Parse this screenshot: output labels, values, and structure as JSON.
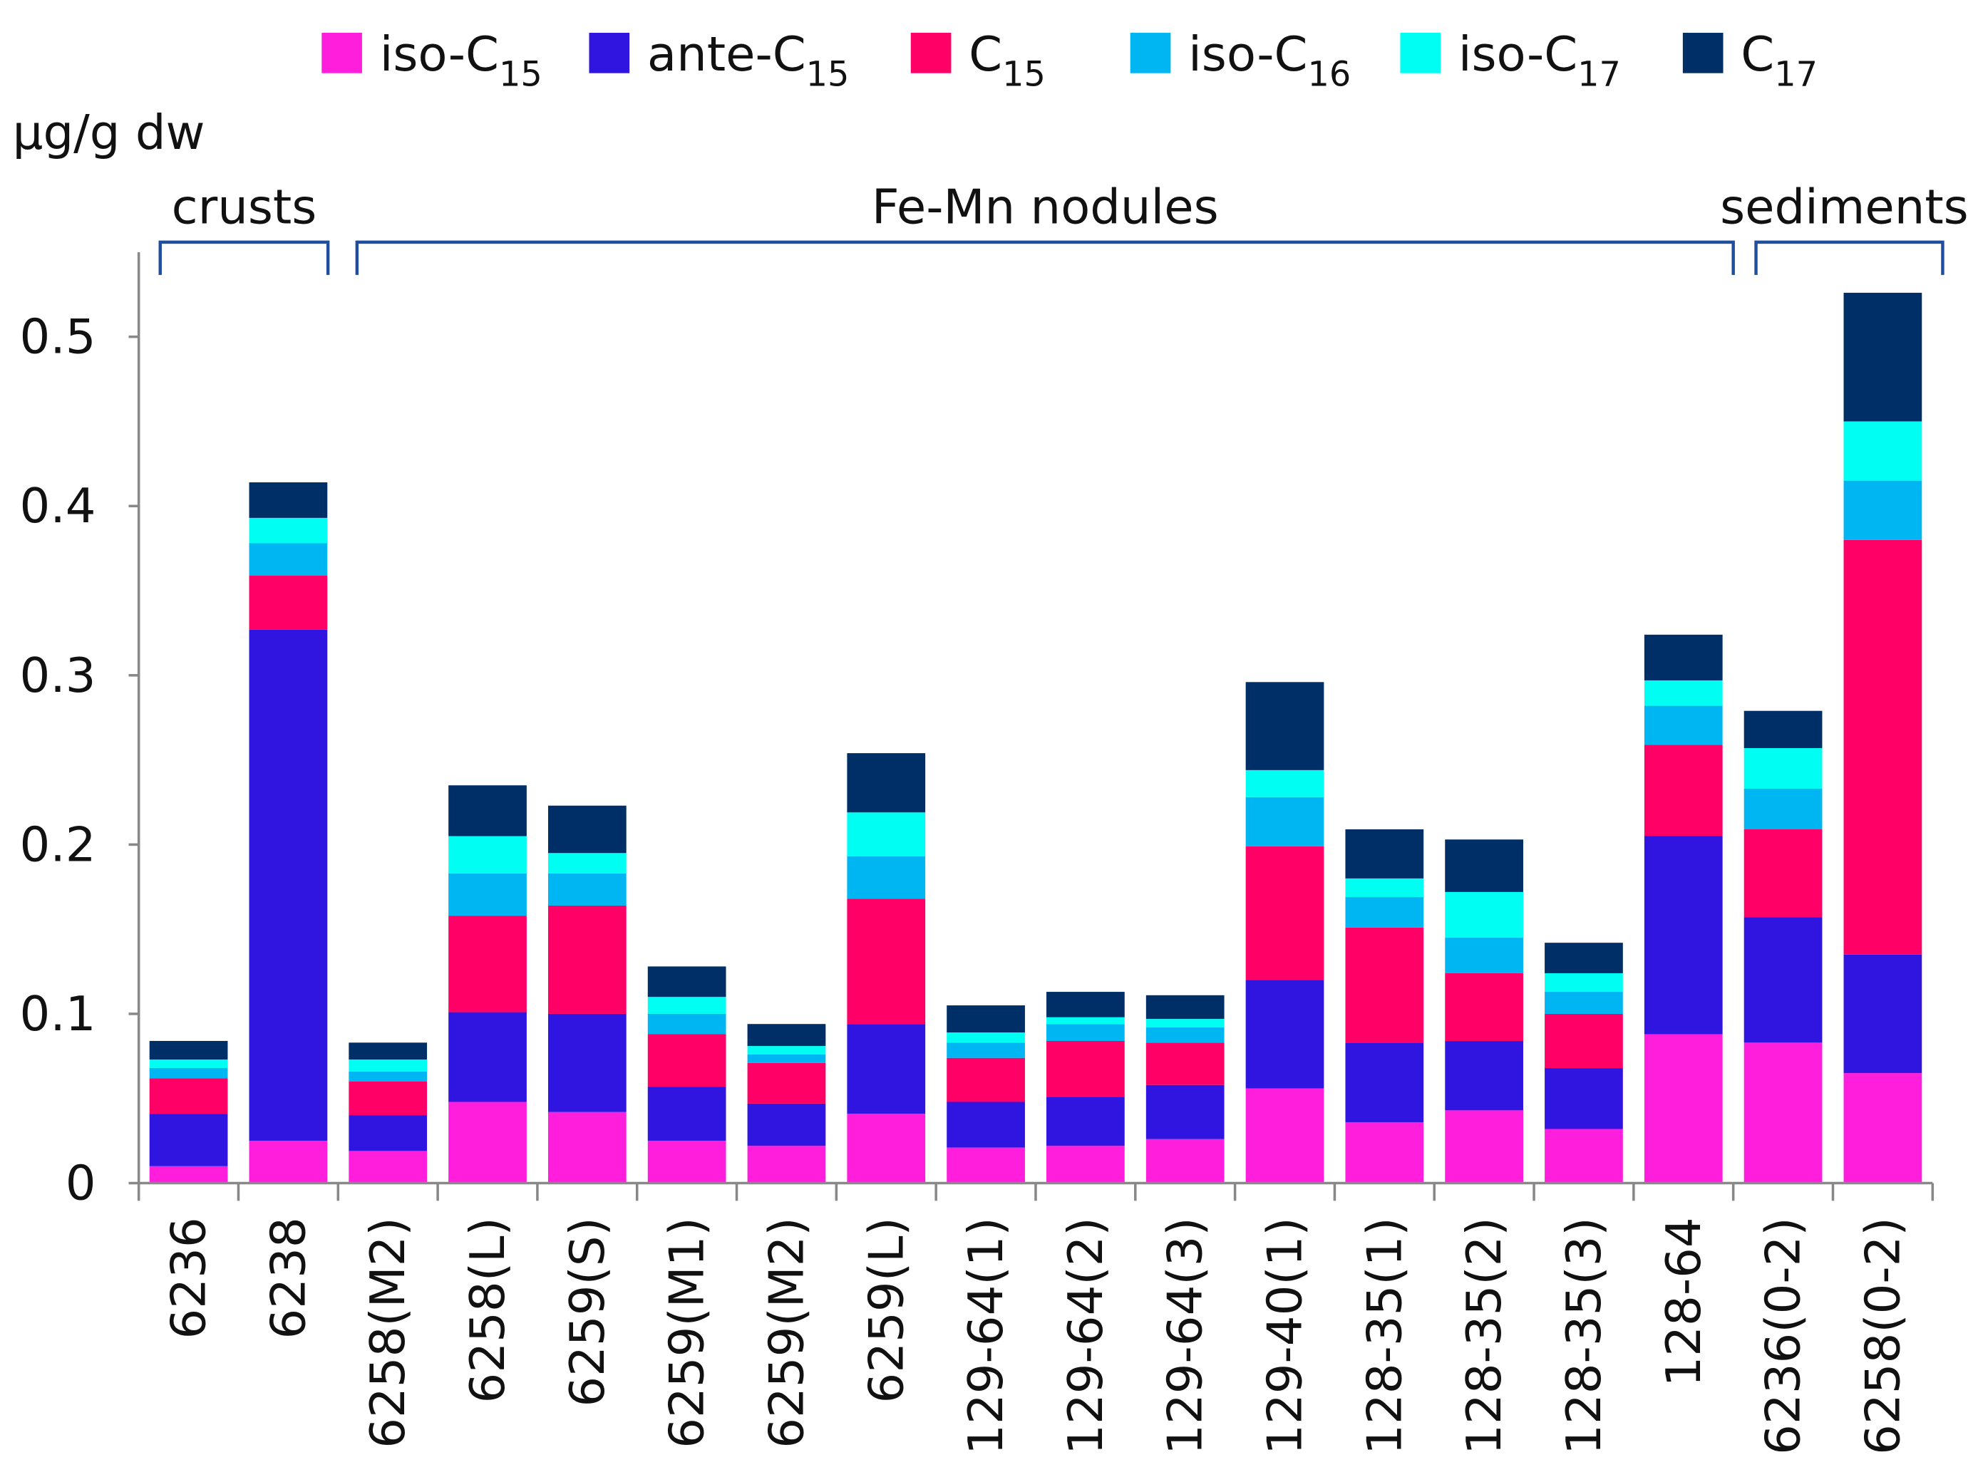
{
  "chart_data": {
    "type": "bar",
    "stacked": true,
    "ylabel": "µg/g dw",
    "ylim": [
      0,
      0.55
    ],
    "yticks": [
      "0",
      "0.1",
      "0.2",
      "0.3",
      "0.4",
      "0.5"
    ],
    "ytick_values": [
      0,
      0.1,
      0.2,
      0.3,
      0.4,
      0.5
    ],
    "legend_position": "top",
    "categories": [
      "6236",
      "6238",
      "6258(M2)",
      "6258(L)",
      "6259(S)",
      "6259(M1)",
      "6259(M2)",
      "6259(L)",
      "129-64(1)",
      "129-64(2)",
      "129-64(3)",
      "129-40(1)",
      "128-35(1)",
      "128-35(2)",
      "128-35(3)",
      "128-64",
      "6236(0-2)",
      "6258(0-2)"
    ],
    "groups": [
      {
        "label": "crusts",
        "from": 0,
        "to": 1
      },
      {
        "label": "Fe-Mn nodules",
        "from": 2,
        "to": 15
      },
      {
        "label": "sediments",
        "from": 16,
        "to": 17
      }
    ],
    "series": [
      {
        "name": "iso-C15",
        "prefix": "iso-C",
        "sub": "15",
        "color": "#FF1EDC",
        "values": [
          0.01,
          0.025,
          0.019,
          0.048,
          0.042,
          0.025,
          0.022,
          0.041,
          0.021,
          0.022,
          0.026,
          0.056,
          0.036,
          0.043,
          0.032,
          0.088,
          0.083,
          0.065
        ]
      },
      {
        "name": "ante-C15",
        "prefix": "ante-C",
        "sub": "15",
        "color": "#3014E0",
        "values": [
          0.031,
          0.302,
          0.021,
          0.053,
          0.058,
          0.032,
          0.025,
          0.053,
          0.027,
          0.029,
          0.032,
          0.064,
          0.047,
          0.041,
          0.036,
          0.117,
          0.074,
          0.07
        ]
      },
      {
        "name": "C15",
        "prefix": "C",
        "sub": "15",
        "color": "#FF0066",
        "values": [
          0.021,
          0.032,
          0.02,
          0.057,
          0.064,
          0.031,
          0.024,
          0.074,
          0.026,
          0.033,
          0.025,
          0.079,
          0.068,
          0.04,
          0.032,
          0.054,
          0.052,
          0.245
        ]
      },
      {
        "name": "iso-C16",
        "prefix": "iso-C",
        "sub": "16",
        "color": "#00B6F2",
        "values": [
          0.006,
          0.019,
          0.006,
          0.025,
          0.019,
          0.012,
          0.005,
          0.025,
          0.009,
          0.01,
          0.009,
          0.029,
          0.018,
          0.021,
          0.013,
          0.023,
          0.024,
          0.035
        ]
      },
      {
        "name": "iso-C17",
        "prefix": "iso-C",
        "sub": "17",
        "color": "#00FFF2",
        "values": [
          0.005,
          0.015,
          0.007,
          0.022,
          0.012,
          0.01,
          0.005,
          0.026,
          0.006,
          0.004,
          0.005,
          0.016,
          0.011,
          0.027,
          0.011,
          0.015,
          0.024,
          0.035
        ]
      },
      {
        "name": "C17",
        "prefix": "C",
        "sub": "17",
        "color": "#002E66",
        "values": [
          0.011,
          0.021,
          0.01,
          0.03,
          0.028,
          0.018,
          0.013,
          0.035,
          0.016,
          0.015,
          0.014,
          0.052,
          0.029,
          0.031,
          0.018,
          0.027,
          0.022,
          0.076
        ]
      }
    ]
  }
}
